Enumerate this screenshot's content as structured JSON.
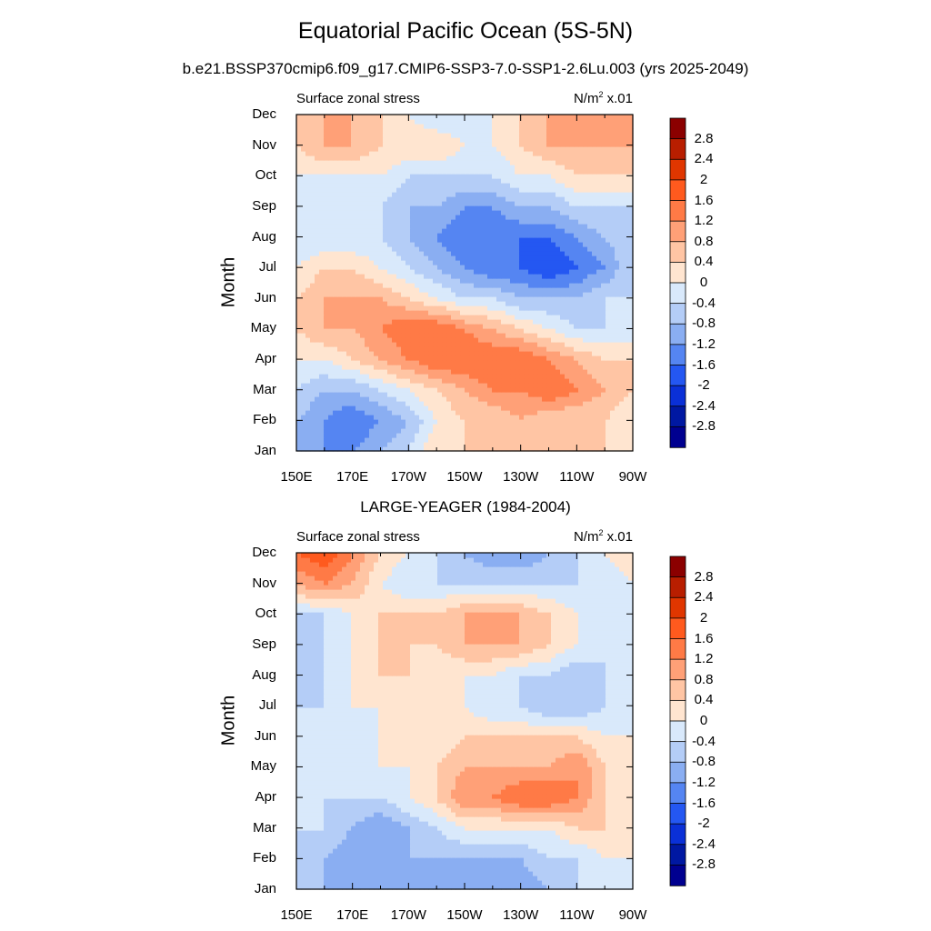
{
  "title": "Equatorial Pacific Ocean (5S-5N)",
  "subtitle": "b.e21.BSSP370cmip6.f09_g17.CMIP6-SSP3-7.0-SSP1-2.6Lu.003 (yrs 2025-2049)",
  "colorbar": {
    "labels": [
      "2.8",
      "2.4",
      "2",
      "1.6",
      "1.2",
      "0.8",
      "0.4",
      "0",
      "-0.4",
      "-0.8",
      "-1.2",
      "-1.6",
      "-2",
      "-2.4",
      "-2.8"
    ],
    "colors": [
      "#8b0000",
      "#b81e00",
      "#e03600",
      "#ff5a1e",
      "#ff7a46",
      "#ffa077",
      "#ffc5a4",
      "#ffe5d0",
      "#d9e9fb",
      "#b4cdf7",
      "#8aaef2",
      "#5585f2",
      "#2457f2",
      "#0a30d7",
      "#0018a2",
      "#000090"
    ]
  },
  "chart_data": [
    {
      "type": "heatmap",
      "panel_title": "",
      "left_label": "Surface zonal stress",
      "right_label": "N/m² x.01",
      "units_base": "N/m",
      "units_exp": "2",
      "units_suffix": " x.01",
      "xlabel": "",
      "ylabel": "Month",
      "x_ticks": [
        "150E",
        "170E",
        "170W",
        "150W",
        "130W",
        "110W",
        "90W"
      ],
      "y_ticks": [
        "Jan",
        "Feb",
        "Mar",
        "Apr",
        "May",
        "Jun",
        "Jul",
        "Aug",
        "Sep",
        "Oct",
        "Nov",
        "Dec"
      ],
      "xlim": [
        150,
        270
      ],
      "ylim": [
        1,
        12
      ],
      "levels": [
        -2.8,
        -2.4,
        -2.0,
        -1.6,
        -1.2,
        -0.8,
        -0.4,
        0,
        0.4,
        0.8,
        1.2,
        1.6,
        2.0,
        2.4,
        2.8
      ],
      "lon": [
        150,
        160,
        170,
        180,
        190,
        200,
        210,
        220,
        230,
        240,
        250,
        260,
        270
      ],
      "values": [
        [
          -0.8,
          -1.2,
          -1.2,
          -0.8,
          -0.4,
          0.4,
          0.4,
          0.4,
          0.4,
          0.4,
          0.4,
          0.4,
          0.0
        ],
        [
          -0.8,
          -1.2,
          -1.6,
          -1.2,
          -0.8,
          0.0,
          0.4,
          0.4,
          0.8,
          0.4,
          0.4,
          0.4,
          0.0
        ],
        [
          -0.4,
          -0.8,
          -0.8,
          -0.4,
          0.0,
          0.4,
          0.8,
          1.2,
          1.2,
          1.6,
          1.2,
          0.8,
          0.4
        ],
        [
          0.0,
          0.0,
          0.4,
          0.8,
          1.2,
          1.6,
          1.6,
          1.6,
          1.6,
          1.2,
          0.8,
          0.4,
          0.4
        ],
        [
          0.4,
          0.8,
          0.8,
          1.2,
          1.6,
          1.6,
          1.2,
          0.8,
          0.4,
          0.0,
          -0.4,
          -0.4,
          -0.4
        ],
        [
          0.4,
          0.8,
          0.8,
          0.8,
          0.4,
          0.0,
          -0.4,
          -0.4,
          -0.8,
          -0.8,
          -0.8,
          -0.4,
          -0.4
        ],
        [
          0.0,
          0.4,
          0.4,
          0.0,
          -0.4,
          -0.8,
          -1.2,
          -1.6,
          -1.6,
          -2.0,
          -1.6,
          -1.2,
          -0.4
        ],
        [
          -0.4,
          -0.4,
          -0.4,
          -0.4,
          -0.8,
          -1.2,
          -1.6,
          -1.6,
          -1.6,
          -1.6,
          -1.2,
          -0.8,
          -0.4
        ],
        [
          -0.4,
          -0.4,
          -0.4,
          -0.4,
          -0.8,
          -0.8,
          -1.2,
          -1.2,
          -0.8,
          -0.8,
          -0.4,
          -0.4,
          -0.4
        ],
        [
          0.0,
          0.0,
          0.0,
          0.0,
          -0.4,
          -0.4,
          -0.4,
          -0.4,
          0.0,
          0.0,
          0.4,
          0.4,
          0.4
        ],
        [
          0.4,
          0.8,
          0.8,
          0.4,
          0.4,
          0.4,
          0.0,
          0.0,
          0.4,
          0.8,
          0.8,
          0.8,
          0.8
        ],
        [
          0.4,
          0.8,
          0.8,
          0.4,
          0.0,
          -0.4,
          -0.4,
          0.0,
          0.4,
          0.8,
          0.8,
          0.8,
          0.8
        ]
      ]
    },
    {
      "type": "heatmap",
      "panel_title": "LARGE-YEAGER (1984-2004)",
      "left_label": "Surface zonal stress",
      "right_label": "N/m² x.01",
      "units_base": "N/m",
      "units_exp": "2",
      "units_suffix": " x.01",
      "xlabel": "",
      "ylabel": "Month",
      "x_ticks": [
        "150E",
        "170E",
        "170W",
        "150W",
        "130W",
        "110W",
        "90W"
      ],
      "y_ticks": [
        "Jan",
        "Feb",
        "Mar",
        "Apr",
        "May",
        "Jun",
        "Jul",
        "Aug",
        "Sep",
        "Oct",
        "Nov",
        "Dec"
      ],
      "xlim": [
        150,
        270
      ],
      "ylim": [
        1,
        12
      ],
      "levels": [
        -2.8,
        -2.4,
        -2.0,
        -1.6,
        -1.2,
        -0.8,
        -0.4,
        0,
        0.4,
        0.8,
        1.2,
        1.6,
        2.0,
        2.4,
        2.8
      ],
      "lon": [
        150,
        160,
        170,
        180,
        190,
        200,
        210,
        220,
        230,
        240,
        250,
        260,
        270
      ],
      "values": [
        [
          -0.4,
          -0.8,
          -0.8,
          -0.8,
          -0.8,
          -1.2,
          -1.2,
          -0.8,
          -1.2,
          -0.8,
          -0.4,
          -0.4,
          0.0
        ],
        [
          -0.4,
          -0.8,
          -1.2,
          -1.2,
          -0.8,
          -0.8,
          -0.8,
          -0.8,
          -0.8,
          -0.4,
          -0.4,
          0.0,
          0.0
        ],
        [
          -0.4,
          -0.4,
          -0.8,
          -1.2,
          -0.8,
          -0.4,
          0.0,
          0.0,
          0.0,
          0.0,
          0.4,
          0.4,
          0.0
        ],
        [
          0.0,
          -0.4,
          -0.4,
          -0.4,
          0.0,
          0.4,
          1.2,
          1.2,
          1.6,
          1.6,
          1.2,
          0.4,
          0.0
        ],
        [
          0.0,
          -0.4,
          -0.4,
          0.0,
          0.0,
          0.4,
          0.8,
          0.8,
          0.8,
          0.8,
          1.2,
          0.4,
          0.0
        ],
        [
          -0.4,
          -0.4,
          -0.4,
          0.0,
          0.0,
          0.0,
          0.4,
          0.4,
          0.4,
          0.4,
          0.4,
          0.0,
          0.0
        ],
        [
          -0.4,
          -0.4,
          0.0,
          0.0,
          0.0,
          0.0,
          0.0,
          -0.4,
          -0.4,
          -0.8,
          -0.8,
          -0.4,
          0.0
        ],
        [
          -0.8,
          -0.4,
          0.0,
          0.4,
          0.4,
          0.0,
          0.0,
          0.0,
          -0.4,
          -0.4,
          -0.8,
          -0.4,
          0.0
        ],
        [
          -0.8,
          -0.4,
          0.0,
          0.4,
          0.4,
          0.4,
          0.8,
          0.8,
          0.8,
          0.4,
          0.0,
          -0.4,
          -0.4
        ],
        [
          -0.4,
          -0.4,
          0.0,
          0.4,
          0.4,
          0.4,
          0.8,
          0.8,
          0.8,
          0.4,
          0.0,
          -0.4,
          0.0
        ],
        [
          0.8,
          1.2,
          0.8,
          0.0,
          -0.4,
          -0.4,
          -0.4,
          -0.4,
          -0.4,
          -0.4,
          -0.4,
          -0.4,
          0.0
        ],
        [
          1.6,
          2.0,
          1.2,
          0.4,
          0.0,
          -0.4,
          -0.8,
          -1.2,
          -1.2,
          -0.8,
          -0.4,
          0.0,
          0.4
        ]
      ]
    }
  ]
}
